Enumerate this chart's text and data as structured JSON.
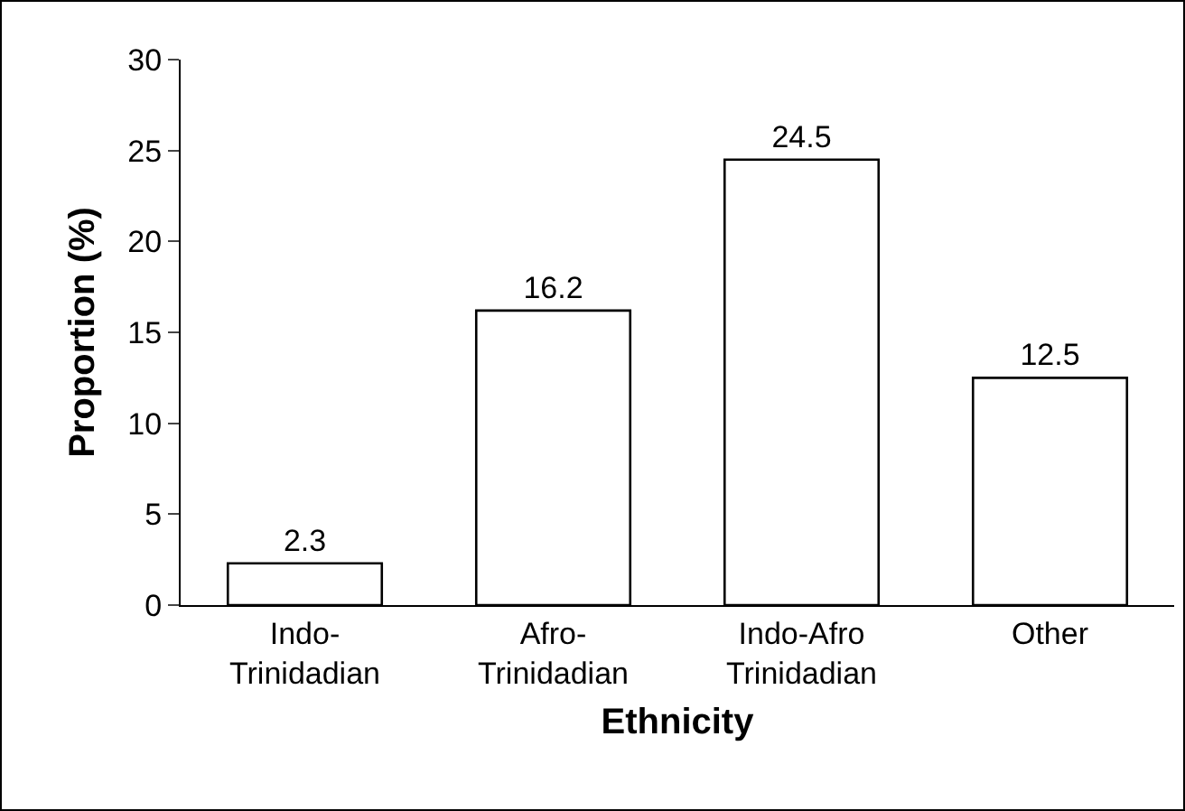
{
  "chart_data": {
    "type": "bar",
    "xlabel": "Ethnicity",
    "ylabel": "Proportion (%)",
    "categories": [
      "Indo-\nTrinidadian",
      "Afro-\nTrinidadian",
      "Indo-Afro\nTrinidadian",
      "Other"
    ],
    "values": [
      2.3,
      16.2,
      24.5,
      12.5
    ],
    "color": "#ffffff",
    "data_labels": true,
    "ylim": [
      0,
      30
    ],
    "yticks": [
      0,
      5,
      10,
      15,
      20,
      25,
      30
    ],
    "grid": false
  }
}
